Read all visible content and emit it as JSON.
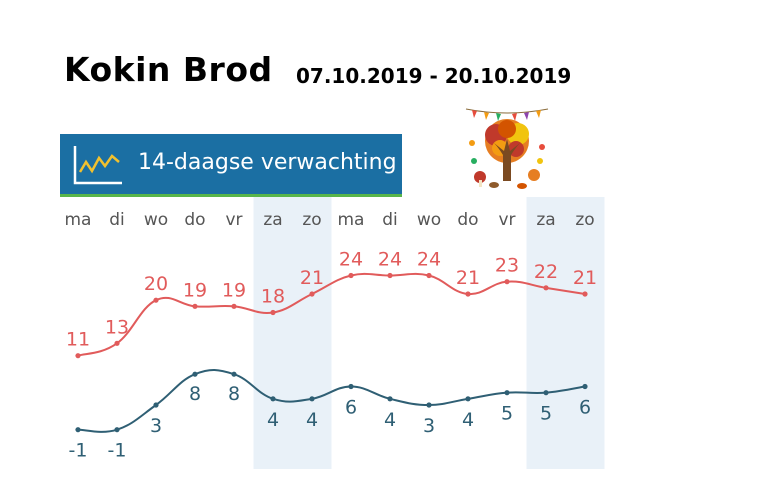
{
  "title": "Kokin Brod",
  "dates": "07.10.2019 - 20.10.2019",
  "header": {
    "label": "14-daagse verwachting",
    "icon": "line-chart-icon",
    "bar_color": "#1b6fa3",
    "accent_color": "#58b54a"
  },
  "decoration": {
    "icon": "autumn-tree-icon"
  },
  "chart_data": {
    "type": "line",
    "categories": [
      "ma",
      "di",
      "wo",
      "do",
      "vr",
      "za",
      "zo",
      "ma",
      "di",
      "wo",
      "do",
      "vr",
      "za",
      "zo"
    ],
    "weekend_indices": [
      5,
      6,
      12,
      13
    ],
    "series": [
      {
        "values": [
          11,
          13,
          20,
          19,
          19,
          18,
          21,
          24,
          24,
          24,
          21,
          23,
          22,
          21
        ],
        "color": "#e15b5b"
      },
      {
        "values": [
          -1,
          -1,
          3,
          8,
          8,
          4,
          4,
          6,
          4,
          3,
          4,
          5,
          5,
          6
        ],
        "color": "#2f5f74"
      }
    ],
    "ylim": [
      -3,
      27
    ],
    "grid": false,
    "weekend_shade": "#e9f1f8"
  }
}
